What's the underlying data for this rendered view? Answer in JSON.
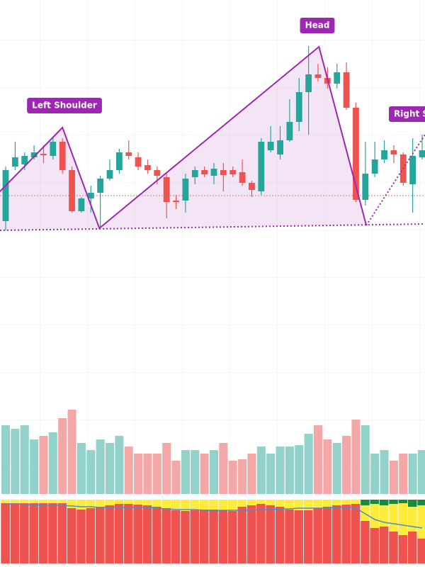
{
  "chart_data": [
    {
      "type": "candlestick",
      "open": [
        28,
        105,
        108,
        118,
        123,
        120,
        140,
        100,
        42,
        60,
        68,
        88,
        100,
        125,
        118,
        107,
        100,
        90,
        57,
        57,
        90,
        100,
        92,
        100,
        100,
        97,
        82,
        70,
        128,
        122,
        142,
        168,
        210,
        235,
        230,
        222,
        238,
        188,
        58,
        95,
        115,
        128,
        122,
        80,
        118
      ],
      "high": [
        105,
        140,
        125,
        135,
        135,
        145,
        145,
        105,
        62,
        78,
        92,
        115,
        130,
        142,
        125,
        115,
        105,
        95,
        65,
        95,
        105,
        105,
        110,
        110,
        105,
        115,
        85,
        145,
        162,
        162,
        200,
        230,
        275,
        250,
        245,
        250,
        252,
        195,
        140,
        140,
        142,
        135,
        125,
        145,
        150
      ],
      "low": [
        15,
        100,
        100,
        115,
        110,
        115,
        95,
        40,
        40,
        40,
        20,
        85,
        95,
        115,
        100,
        95,
        80,
        32,
        45,
        40,
        80,
        90,
        80,
        70,
        90,
        78,
        62,
        65,
        125,
        115,
        140,
        155,
        150,
        225,
        215,
        215,
        185,
        55,
        50,
        90,
        110,
        110,
        78,
        40,
        115
      ],
      "close": [
        100,
        118,
        120,
        125,
        121,
        140,
        100,
        42,
        60,
        68,
        88,
        100,
        125,
        120,
        105,
        100,
        92,
        55,
        55,
        88,
        100,
        94,
        102,
        93,
        94,
        82,
        72,
        140,
        140,
        142,
        168,
        210,
        235,
        230,
        222,
        238,
        188,
        58,
        95,
        115,
        128,
        122,
        82,
        120,
        128
      ],
      "xlim": [
        -0.6,
        44.3
      ],
      "ylim": [
        0,
        340
      ],
      "up_color": "#26a69a",
      "down_color": "#ef5350",
      "annotations": [
        "Left Shoulder",
        "Head",
        "Right Shoulder"
      ],
      "pattern": {
        "x": [
          -0.6,
          6,
          9.9,
          33.1,
          38.1
        ],
        "values": [
          70,
          160,
          18,
          274,
          22
        ],
        "color": "#9c27b0"
      },
      "projection": {
        "x": [
          38.1,
          44.3
        ],
        "values": [
          22,
          150
        ]
      },
      "neckline": {
        "x": [
          -0.6,
          44.3
        ],
        "values": [
          15,
          24
        ]
      },
      "level": 64,
      "level_color": "#e57373"
    },
    {
      "type": "bar",
      "values": [
        97,
        92,
        97,
        77,
        82,
        87,
        107,
        119,
        72,
        62,
        77,
        72,
        82,
        67,
        57,
        57,
        57,
        72,
        47,
        62,
        62,
        57,
        62,
        72,
        47,
        49,
        57,
        67,
        57,
        67,
        67,
        69,
        85,
        97,
        77,
        72,
        82,
        105,
        97,
        57,
        62,
        47,
        57,
        57,
        62
      ],
      "ylim": [
        0,
        120
      ],
      "up_color": "#93d2cb",
      "down_color": "#f4a7a7"
    },
    {
      "type": "stacked_bar",
      "series": [
        {
          "color": "#ef5350",
          "values": [
            85,
            85,
            85,
            85,
            85,
            85,
            85,
            78,
            76,
            78,
            80,
            82,
            84,
            84,
            83,
            82,
            80,
            78,
            75,
            74,
            75,
            76,
            76,
            75,
            74,
            80,
            82,
            84,
            82,
            80,
            76,
            75,
            75,
            78,
            80,
            82,
            83,
            84,
            60,
            50,
            52,
            45,
            40,
            45,
            35
          ]
        },
        {
          "color": "#ffeb3b",
          "values": [
            5,
            5,
            5,
            5,
            5,
            5,
            5,
            12,
            14,
            12,
            10,
            8,
            6,
            6,
            7,
            8,
            10,
            12,
            15,
            16,
            15,
            14,
            14,
            15,
            16,
            10,
            8,
            6,
            8,
            10,
            14,
            15,
            15,
            12,
            10,
            8,
            7,
            6,
            22,
            34,
            30,
            39,
            45,
            35,
            47
          ]
        },
        {
          "color": "#1b8a3a",
          "values": [
            0,
            0,
            0,
            0,
            0,
            0,
            0,
            0,
            0,
            0,
            0,
            0,
            0,
            0,
            0,
            0,
            0,
            0,
            0,
            0,
            0,
            0,
            0,
            0,
            0,
            0,
            0,
            0,
            0,
            0,
            0,
            0,
            0,
            0,
            0,
            0,
            0,
            0,
            8,
            6,
            8,
            6,
            5,
            10,
            8
          ]
        }
      ],
      "line": {
        "color": "#4a90c8",
        "values": [
          84,
          84,
          83,
          83,
          82,
          82,
          82,
          81,
          80,
          80,
          79,
          79,
          79,
          79,
          79,
          79,
          78,
          77,
          76,
          76,
          76,
          75,
          75,
          75,
          75,
          75,
          75,
          76,
          76,
          77,
          77,
          78,
          78,
          78,
          78,
          79,
          79,
          78,
          70,
          62,
          58,
          56,
          54,
          52,
          50
        ]
      },
      "ylim": [
        0,
        90
      ]
    }
  ]
}
